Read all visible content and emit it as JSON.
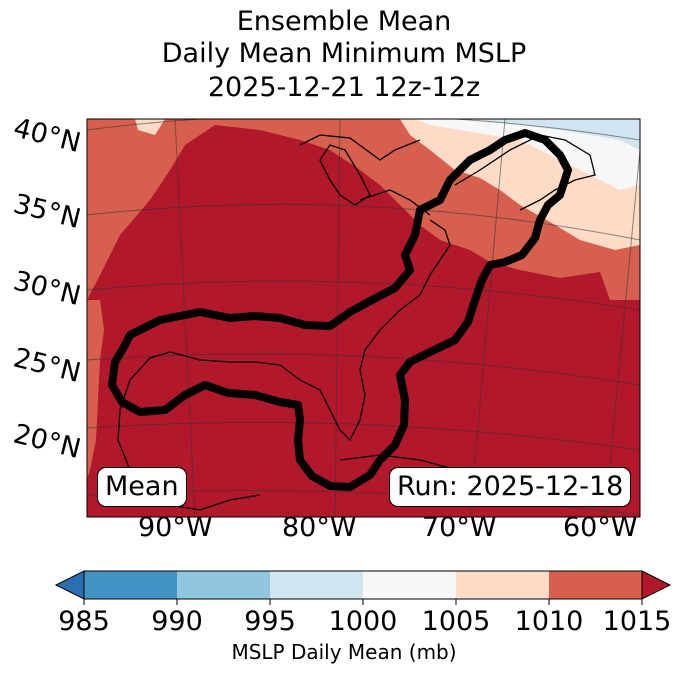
{
  "title": {
    "line1": "Ensemble Mean",
    "line2": "Daily Mean Minimum MSLP",
    "line3": "2025-12-21 12z-12z"
  },
  "lat_labels": [
    "40°N",
    "35°N",
    "30°N",
    "25°N",
    "20°N"
  ],
  "lon_labels": [
    "90°W",
    "80°W",
    "70°W",
    "60°W"
  ],
  "mean_box": "Mean",
  "run_box": "Run: 2025-12-18",
  "colorbar": {
    "label": "MSLP Daily Mean (mb)",
    "ticks": [
      "985",
      "990",
      "995",
      "1000",
      "1005",
      "1010",
      "1015"
    ],
    "colors": [
      "#2b6fb0",
      "#4393c3",
      "#92c5de",
      "#d1e5f0",
      "#f7f7f7",
      "#fddbc7",
      "#d6604d",
      "#b2182b"
    ]
  },
  "fill_colors": {
    "dark_red": "#b2182b",
    "red": "#d6604d",
    "peach": "#fddbc7",
    "white": "#f7f7f7",
    "light_blue": "#d1e5f0"
  }
}
